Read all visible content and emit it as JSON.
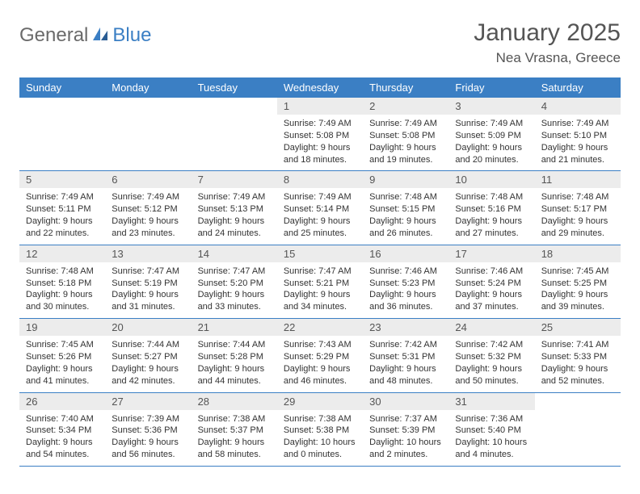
{
  "brand": {
    "part1": "General",
    "part2": "Blue"
  },
  "title": "January 2025",
  "location": "Nea Vrasna, Greece",
  "colors": {
    "header_bg": "#3b7fc4",
    "header_text": "#ffffff",
    "daynum_bg": "#ececec",
    "border": "#3b7fc4",
    "text": "#333333",
    "title_text": "#555555",
    "logo_gray": "#6a6a6a",
    "logo_blue": "#3b7fc4",
    "background": "#ffffff"
  },
  "typography": {
    "base_font": "Arial",
    "title_size": 30,
    "location_size": 17,
    "header_size": 13,
    "daynum_size": 13,
    "content_size": 11
  },
  "dayNames": [
    "Sunday",
    "Monday",
    "Tuesday",
    "Wednesday",
    "Thursday",
    "Friday",
    "Saturday"
  ],
  "weeks": [
    [
      {
        "n": "",
        "lines": []
      },
      {
        "n": "",
        "lines": []
      },
      {
        "n": "",
        "lines": []
      },
      {
        "n": "1",
        "lines": [
          "Sunrise: 7:49 AM",
          "Sunset: 5:08 PM",
          "Daylight: 9 hours",
          "and 18 minutes."
        ]
      },
      {
        "n": "2",
        "lines": [
          "Sunrise: 7:49 AM",
          "Sunset: 5:08 PM",
          "Daylight: 9 hours",
          "and 19 minutes."
        ]
      },
      {
        "n": "3",
        "lines": [
          "Sunrise: 7:49 AM",
          "Sunset: 5:09 PM",
          "Daylight: 9 hours",
          "and 20 minutes."
        ]
      },
      {
        "n": "4",
        "lines": [
          "Sunrise: 7:49 AM",
          "Sunset: 5:10 PM",
          "Daylight: 9 hours",
          "and 21 minutes."
        ]
      }
    ],
    [
      {
        "n": "5",
        "lines": [
          "Sunrise: 7:49 AM",
          "Sunset: 5:11 PM",
          "Daylight: 9 hours",
          "and 22 minutes."
        ]
      },
      {
        "n": "6",
        "lines": [
          "Sunrise: 7:49 AM",
          "Sunset: 5:12 PM",
          "Daylight: 9 hours",
          "and 23 minutes."
        ]
      },
      {
        "n": "7",
        "lines": [
          "Sunrise: 7:49 AM",
          "Sunset: 5:13 PM",
          "Daylight: 9 hours",
          "and 24 minutes."
        ]
      },
      {
        "n": "8",
        "lines": [
          "Sunrise: 7:49 AM",
          "Sunset: 5:14 PM",
          "Daylight: 9 hours",
          "and 25 minutes."
        ]
      },
      {
        "n": "9",
        "lines": [
          "Sunrise: 7:48 AM",
          "Sunset: 5:15 PM",
          "Daylight: 9 hours",
          "and 26 minutes."
        ]
      },
      {
        "n": "10",
        "lines": [
          "Sunrise: 7:48 AM",
          "Sunset: 5:16 PM",
          "Daylight: 9 hours",
          "and 27 minutes."
        ]
      },
      {
        "n": "11",
        "lines": [
          "Sunrise: 7:48 AM",
          "Sunset: 5:17 PM",
          "Daylight: 9 hours",
          "and 29 minutes."
        ]
      }
    ],
    [
      {
        "n": "12",
        "lines": [
          "Sunrise: 7:48 AM",
          "Sunset: 5:18 PM",
          "Daylight: 9 hours",
          "and 30 minutes."
        ]
      },
      {
        "n": "13",
        "lines": [
          "Sunrise: 7:47 AM",
          "Sunset: 5:19 PM",
          "Daylight: 9 hours",
          "and 31 minutes."
        ]
      },
      {
        "n": "14",
        "lines": [
          "Sunrise: 7:47 AM",
          "Sunset: 5:20 PM",
          "Daylight: 9 hours",
          "and 33 minutes."
        ]
      },
      {
        "n": "15",
        "lines": [
          "Sunrise: 7:47 AM",
          "Sunset: 5:21 PM",
          "Daylight: 9 hours",
          "and 34 minutes."
        ]
      },
      {
        "n": "16",
        "lines": [
          "Sunrise: 7:46 AM",
          "Sunset: 5:23 PM",
          "Daylight: 9 hours",
          "and 36 minutes."
        ]
      },
      {
        "n": "17",
        "lines": [
          "Sunrise: 7:46 AM",
          "Sunset: 5:24 PM",
          "Daylight: 9 hours",
          "and 37 minutes."
        ]
      },
      {
        "n": "18",
        "lines": [
          "Sunrise: 7:45 AM",
          "Sunset: 5:25 PM",
          "Daylight: 9 hours",
          "and 39 minutes."
        ]
      }
    ],
    [
      {
        "n": "19",
        "lines": [
          "Sunrise: 7:45 AM",
          "Sunset: 5:26 PM",
          "Daylight: 9 hours",
          "and 41 minutes."
        ]
      },
      {
        "n": "20",
        "lines": [
          "Sunrise: 7:44 AM",
          "Sunset: 5:27 PM",
          "Daylight: 9 hours",
          "and 42 minutes."
        ]
      },
      {
        "n": "21",
        "lines": [
          "Sunrise: 7:44 AM",
          "Sunset: 5:28 PM",
          "Daylight: 9 hours",
          "and 44 minutes."
        ]
      },
      {
        "n": "22",
        "lines": [
          "Sunrise: 7:43 AM",
          "Sunset: 5:29 PM",
          "Daylight: 9 hours",
          "and 46 minutes."
        ]
      },
      {
        "n": "23",
        "lines": [
          "Sunrise: 7:42 AM",
          "Sunset: 5:31 PM",
          "Daylight: 9 hours",
          "and 48 minutes."
        ]
      },
      {
        "n": "24",
        "lines": [
          "Sunrise: 7:42 AM",
          "Sunset: 5:32 PM",
          "Daylight: 9 hours",
          "and 50 minutes."
        ]
      },
      {
        "n": "25",
        "lines": [
          "Sunrise: 7:41 AM",
          "Sunset: 5:33 PM",
          "Daylight: 9 hours",
          "and 52 minutes."
        ]
      }
    ],
    [
      {
        "n": "26",
        "lines": [
          "Sunrise: 7:40 AM",
          "Sunset: 5:34 PM",
          "Daylight: 9 hours",
          "and 54 minutes."
        ]
      },
      {
        "n": "27",
        "lines": [
          "Sunrise: 7:39 AM",
          "Sunset: 5:36 PM",
          "Daylight: 9 hours",
          "and 56 minutes."
        ]
      },
      {
        "n": "28",
        "lines": [
          "Sunrise: 7:38 AM",
          "Sunset: 5:37 PM",
          "Daylight: 9 hours",
          "and 58 minutes."
        ]
      },
      {
        "n": "29",
        "lines": [
          "Sunrise: 7:38 AM",
          "Sunset: 5:38 PM",
          "Daylight: 10 hours",
          "and 0 minutes."
        ]
      },
      {
        "n": "30",
        "lines": [
          "Sunrise: 7:37 AM",
          "Sunset: 5:39 PM",
          "Daylight: 10 hours",
          "and 2 minutes."
        ]
      },
      {
        "n": "31",
        "lines": [
          "Sunrise: 7:36 AM",
          "Sunset: 5:40 PM",
          "Daylight: 10 hours",
          "and 4 minutes."
        ]
      },
      {
        "n": "",
        "lines": []
      }
    ]
  ]
}
